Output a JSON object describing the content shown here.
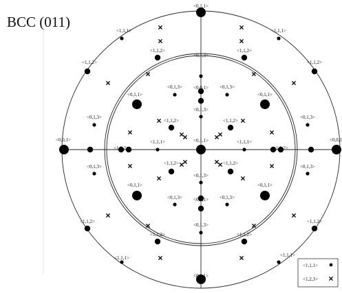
{
  "title": "BCC (011)",
  "legend": [
    {
      "label": "<1,1,1>",
      "symbol": "dot"
    },
    {
      "label": "<1,2,3>",
      "symbol": "cross"
    }
  ],
  "poles": [
    {
      "label": "<0,1,1>",
      "kind": "dot",
      "size": "large"
    },
    {
      "label": "<0,0,1>",
      "kind": "dot",
      "size": "large"
    },
    {
      "label": "<0,0,1>",
      "kind": "dot",
      "size": "large"
    },
    {
      "label": "<0,1,1>",
      "kind": "dot",
      "size": "large"
    },
    {
      "label": "<0,1,1>",
      "kind": "dot",
      "size": "large"
    },
    {
      "label": "<0,1,1>",
      "kind": "dot",
      "size": "large"
    },
    {
      "label": "<0,1,1>",
      "kind": "dot",
      "size": "large"
    },
    {
      "label": "<0,1,1>",
      "kind": "dot",
      "size": "large"
    },
    {
      "label": "<0,1,1>",
      "kind": "dot",
      "size": "large"
    },
    {
      "label": "<0,0,1>",
      "kind": "dot",
      "size": "medium"
    },
    {
      "label": "<0,0,1>",
      "kind": "dot",
      "size": "medium"
    },
    {
      "label": "<1,1,1>",
      "kind": "dot",
      "size": "small"
    },
    {
      "label": "<1,1,1>",
      "kind": "dot",
      "size": "small"
    },
    {
      "label": "<1,1,1>",
      "kind": "dot",
      "size": "small"
    },
    {
      "label": "<1,1,1>",
      "kind": "dot",
      "size": "small"
    },
    {
      "label": "<1,1,1>",
      "kind": "dot",
      "size": "small"
    },
    {
      "label": "<1,1,1>",
      "kind": "dot",
      "size": "small"
    },
    {
      "label": "<1,1,2>",
      "kind": "dot",
      "size": "medium"
    },
    {
      "label": "<1,1,2>",
      "kind": "dot",
      "size": "medium"
    },
    {
      "label": "<1,1,2>",
      "kind": "dot",
      "size": "medium"
    },
    {
      "label": "<1,1,2>",
      "kind": "dot",
      "size": "medium"
    },
    {
      "label": "<1,1,2>",
      "kind": "dot",
      "size": "medium"
    },
    {
      "label": "<1,1,2>",
      "kind": "dot",
      "size": "medium"
    },
    {
      "label": "<1,1,2>",
      "kind": "dot",
      "size": "medium"
    },
    {
      "label": "<1,1,2>",
      "kind": "dot",
      "size": "medium"
    },
    {
      "label": "<1,1,2>",
      "kind": "dot",
      "size": "medium"
    },
    {
      "label": "<1,1,2>",
      "kind": "dot",
      "size": "medium"
    },
    {
      "label": "<1,1,2>",
      "kind": "dot",
      "size": "medium"
    },
    {
      "label": "<1,1,2>",
      "kind": "dot",
      "size": "medium"
    },
    {
      "label": "<1,1,2>",
      "kind": "dot",
      "size": "medium"
    },
    {
      "label": "<1,1,2>",
      "kind": "dot",
      "size": "medium"
    },
    {
      "label": "<0,1,3>",
      "kind": "dot",
      "size": "small"
    },
    {
      "label": "<0,1,3>",
      "kind": "dot",
      "size": "small"
    },
    {
      "label": "<0,1,3>",
      "kind": "dot",
      "size": "small"
    },
    {
      "label": "<0,1,3>",
      "kind": "dot",
      "size": "small"
    },
    {
      "label": "<0,1,3>",
      "kind": "dot",
      "size": "small"
    },
    {
      "label": "<0,1,3>",
      "kind": "dot",
      "size": "small"
    },
    {
      "label": "<0,1,3>",
      "kind": "dot",
      "size": "small"
    },
    {
      "label": "<0,1,3>",
      "kind": "dot",
      "size": "small"
    },
    {
      "label": "<0,1,3>",
      "kind": "dot",
      "size": "small"
    },
    {
      "label": "<0,1,3>",
      "kind": "dot",
      "size": "small"
    },
    {
      "label": "<0,1,3>",
      "kind": "dot",
      "size": "small"
    },
    {
      "label": "<0,1,3>",
      "kind": "dot",
      "size": "small"
    },
    {
      "label": "<0,1,3>",
      "kind": "dot",
      "size": "small"
    },
    {
      "label": "<0,1,3>",
      "kind": "dot",
      "size": "small"
    },
    {
      "label": "<0,1,3>",
      "kind": "dot",
      "size": "small"
    },
    {
      "label": "<0,1,3>",
      "kind": "dot",
      "size": "small"
    },
    {
      "label": "<0,1,1>",
      "kind": "dot",
      "size": "large"
    },
    {
      "label": "<1,1,1>",
      "kind": "dot",
      "size": "small"
    },
    {
      "label": "<1,1,1>",
      "kind": "dot",
      "size": "small"
    },
    {
      "label": "",
      "kind": "dot",
      "size": "medium"
    },
    {
      "label": "",
      "kind": "dot",
      "size": "medium"
    },
    {
      "label": "",
      "kind": "dot",
      "size": "medium"
    },
    {
      "label": "",
      "kind": "dot",
      "size": "medium"
    },
    {
      "label": "",
      "kind": "dot",
      "size": "medium"
    },
    {
      "label": "",
      "kind": "dot",
      "size": "medium"
    },
    {
      "label": "",
      "kind": "dot",
      "size": "small"
    },
    {
      "label": "",
      "kind": "dot",
      "size": "small"
    }
  ]
}
